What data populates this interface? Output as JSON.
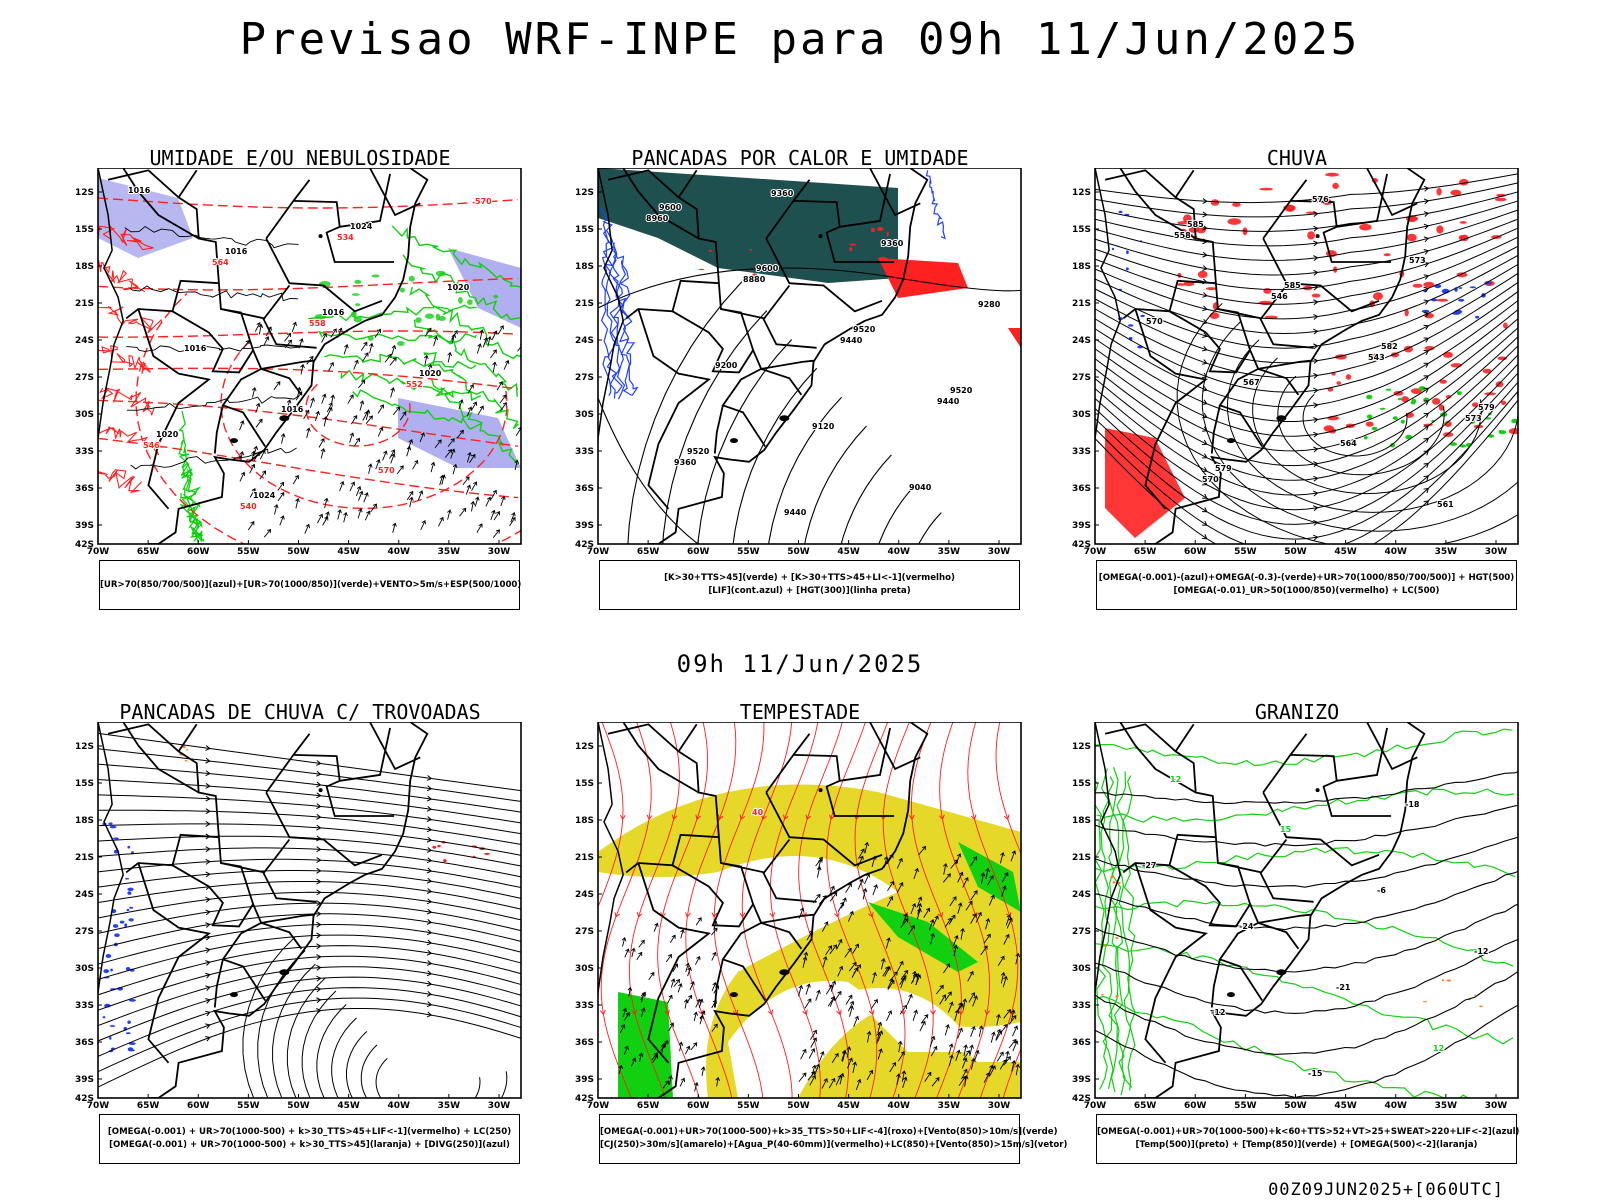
{
  "title": "Previsao WRF-INPE  para 09h 11/Jun/2025",
  "mid_time": "09h 11/Jun/2025",
  "run_id": "00Z09JUN2025+[060UTC]",
  "colors": {
    "coast": "#000000",
    "red": "#ff2020",
    "green": "#10d010",
    "blue": "#2040ff",
    "lavender": "#b0b0f0",
    "darkteal": "#1e5050",
    "yellow": "#e6d828",
    "orange": "#ff8020"
  },
  "axis": {
    "lat_labels": [
      "12S",
      "15S",
      "18S",
      "21S",
      "24S",
      "27S",
      "30S",
      "33S",
      "36S",
      "39S",
      "42S"
    ],
    "lon_labels": [
      "70W",
      "65W",
      "60W",
      "55W",
      "50W",
      "45W",
      "40W",
      "35W",
      "30W"
    ]
  },
  "panels": [
    {
      "title": "UMIDADE E/OU NEBULOSIDADE",
      "legend": [
        "[UR>70(850/700/500)](azul)+[UR>70(1000/850)](verde)+VENTO>5m/s+ESP(500/1000)"
      ],
      "contour_labels": [
        {
          "text": "1016",
          "color": "black"
        },
        {
          "text": "1016",
          "color": "black"
        },
        {
          "text": "1016",
          "color": "black"
        },
        {
          "text": "1020",
          "color": "black"
        },
        {
          "text": "1020",
          "color": "black"
        },
        {
          "text": "1024",
          "color": "black"
        },
        {
          "text": "1024",
          "color": "black"
        },
        {
          "text": "1020",
          "color": "black"
        },
        {
          "text": "1016",
          "color": "black"
        },
        {
          "text": "1016",
          "color": "black"
        },
        {
          "text": "570",
          "color": "red"
        },
        {
          "text": "570",
          "color": "red"
        },
        {
          "text": "564",
          "color": "red"
        },
        {
          "text": "558",
          "color": "red"
        },
        {
          "text": "552",
          "color": "red"
        },
        {
          "text": "546",
          "color": "red"
        },
        {
          "text": "540",
          "color": "red"
        },
        {
          "text": "534",
          "color": "red"
        }
      ]
    },
    {
      "title": "PANCADAS POR CALOR E UMIDADE",
      "legend": [
        "[K>30+TTS>45](verde) + [K>30+TTS>45+LI<-1](vermelho)",
        "[LIF](cont.azul) + [HGT(300)](linha preta)"
      ],
      "contour_labels": [
        {
          "text": "9600",
          "color": "black"
        },
        {
          "text": "9600",
          "color": "black"
        },
        {
          "text": "9520",
          "color": "black"
        },
        {
          "text": "9520",
          "color": "black"
        },
        {
          "text": "9520",
          "color": "black"
        },
        {
          "text": "9440",
          "color": "black"
        },
        {
          "text": "9360",
          "color": "black"
        },
        {
          "text": "9280",
          "color": "black"
        },
        {
          "text": "9200",
          "color": "black"
        },
        {
          "text": "9120",
          "color": "black"
        },
        {
          "text": "9040",
          "color": "black"
        },
        {
          "text": "8960",
          "color": "black"
        },
        {
          "text": "8880",
          "color": "black"
        },
        {
          "text": "9440",
          "color": "black"
        },
        {
          "text": "9440",
          "color": "black"
        },
        {
          "text": "9360",
          "color": "black"
        },
        {
          "text": "9360",
          "color": "black"
        }
      ]
    },
    {
      "title": "CHUVA",
      "legend": [
        "[OMEGA(-0.001)-(azul)+OMEGA(-0.3)-(verde)+UR>70(1000/850/700/500)] + HGT(500)",
        "[OMEGA(-0.01)_UR>50(1000/850)(vermelho) + LC(500)"
      ],
      "contour_labels": [
        {
          "text": "585",
          "color": "black"
        },
        {
          "text": "585",
          "color": "black"
        },
        {
          "text": "582",
          "color": "black"
        },
        {
          "text": "579",
          "color": "black"
        },
        {
          "text": "579",
          "color": "black"
        },
        {
          "text": "576",
          "color": "black"
        },
        {
          "text": "573",
          "color": "black"
        },
        {
          "text": "570",
          "color": "black"
        },
        {
          "text": "567",
          "color": "black"
        },
        {
          "text": "564",
          "color": "black"
        },
        {
          "text": "561",
          "color": "black"
        },
        {
          "text": "558",
          "color": "black"
        },
        {
          "text": "546",
          "color": "black"
        },
        {
          "text": "543",
          "color": "black"
        },
        {
          "text": "573",
          "color": "black"
        },
        {
          "text": "570",
          "color": "black"
        }
      ]
    },
    {
      "title": "PANCADAS DE CHUVA C/ TROVOADAS",
      "legend": [
        "[OMEGA(-0.001) + UR>70(1000-500) + k>30_TTS>45+LIF<-1](vermelho) + LC(250)",
        "[OMEGA(-0.001) + UR>70(1000-500) + k>30_TTS>45](laranja) + [DIVG(250)](azul)"
      ],
      "contour_labels": []
    },
    {
      "title": "TEMPESTADE",
      "legend": [
        "[OMEGA(-0.001)+UR>70(1000-500)+k>35_TTS>50+LIF<-4](roxo)+[Vento(850)>10m/s](verde)",
        "[CJ(250)>30m/s](amarelo)+[Agua_P(40-60mm)](vermelho)+LC(850)+[Vento(850)>15m/s](vetor)"
      ],
      "contour_labels": [
        {
          "text": "40",
          "color": "red"
        }
      ]
    },
    {
      "title": "GRANIZO",
      "legend": [
        "[OMEGA(-0.001)+UR>70(1000-500)+k<60+TTS>52+VT>25+SWEAT>220+LIF<-2](azul)",
        "[Temp(500)](preto) + [Temp(850)](verde) + [OMEGA(500)<-2](laranja)"
      ],
      "contour_labels": [
        {
          "text": "15",
          "color": "green"
        },
        {
          "text": "-6",
          "color": "black"
        },
        {
          "text": "-12",
          "color": "black"
        },
        {
          "text": "-12",
          "color": "black"
        },
        {
          "text": "-15",
          "color": "black"
        },
        {
          "text": "-18",
          "color": "black"
        },
        {
          "text": "-27",
          "color": "black"
        },
        {
          "text": "-24",
          "color": "black"
        },
        {
          "text": "-21",
          "color": "black"
        },
        {
          "text": "12",
          "color": "green"
        },
        {
          "text": "12",
          "color": "green"
        }
      ]
    }
  ]
}
